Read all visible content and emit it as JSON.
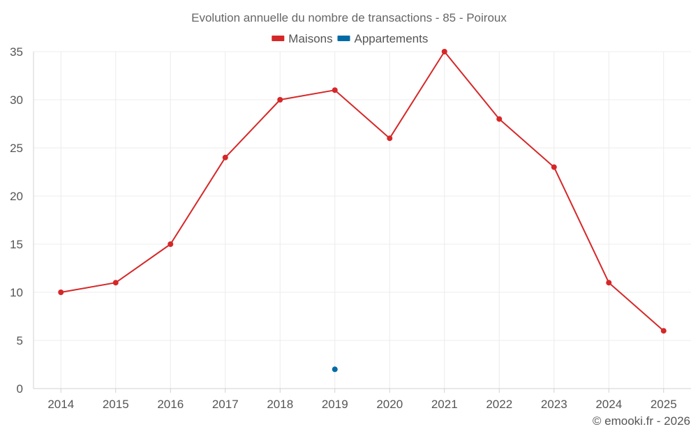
{
  "chart_data": {
    "type": "line",
    "title": "Evolution annuelle du nombre de transactions - 85 - Poiroux",
    "categories": [
      "2014",
      "2015",
      "2016",
      "2017",
      "2018",
      "2019",
      "2020",
      "2021",
      "2022",
      "2023",
      "2024",
      "2025"
    ],
    "series": [
      {
        "name": "Maisons",
        "color": "#d62728",
        "values": [
          10,
          11,
          15,
          24,
          30,
          31,
          26,
          35,
          28,
          23,
          11,
          6
        ]
      },
      {
        "name": "Appartements",
        "color": "#006ba6",
        "values": [
          null,
          null,
          null,
          null,
          null,
          2,
          null,
          null,
          null,
          null,
          null,
          null
        ]
      }
    ],
    "yticks": [
      0,
      5,
      10,
      15,
      20,
      25,
      30,
      35
    ],
    "ylim": [
      0,
      35
    ],
    "xlabel": "",
    "ylabel": "",
    "grid": true,
    "legend_position": "top-center"
  },
  "credit": "© emooki.fr - 2026"
}
